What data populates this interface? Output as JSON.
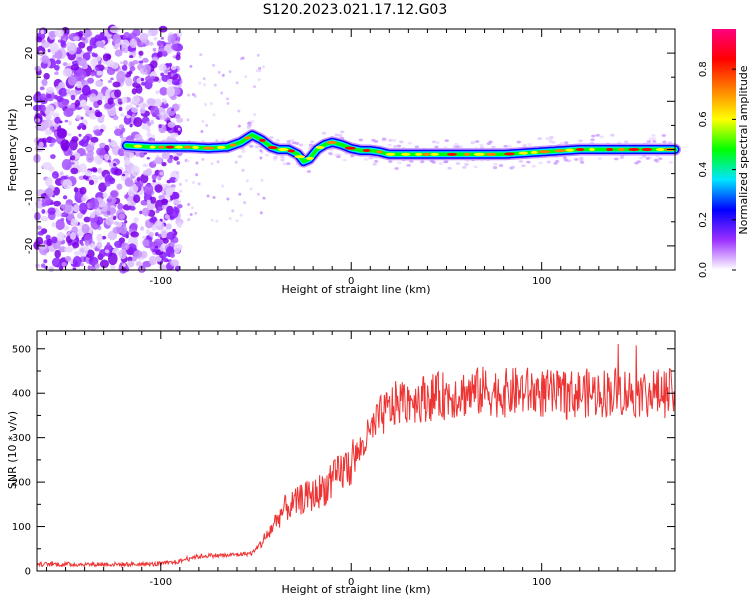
{
  "figure": {
    "title": "S120.2023.021.17.12.G03"
  },
  "chart_data": [
    {
      "type": "heatmap",
      "name": "spectrogram",
      "xlabel": "Height of straight line (km)",
      "ylabel": "Frequency (Hz)",
      "xlim": [
        -165,
        170
      ],
      "ylim": [
        -25,
        25
      ],
      "x_ticks": [
        -100,
        0,
        100
      ],
      "y_ticks": [
        -20,
        -10,
        0,
        10,
        20
      ],
      "track": {
        "x": [
          -118,
          -105,
          -95,
          -85,
          -75,
          -65,
          -58,
          -52,
          -47,
          -42,
          -38,
          -33,
          -28,
          -25,
          -22,
          -18,
          -14,
          -10,
          -5,
          0,
          5,
          10,
          15,
          20,
          30,
          40,
          50,
          60,
          80,
          100,
          120,
          140,
          160,
          170
        ],
        "y": [
          0.8,
          0.5,
          0.5,
          0.5,
          0.3,
          0.5,
          1.5,
          3.0,
          2.0,
          0.5,
          0.0,
          0.0,
          -1.0,
          -2.5,
          -2.0,
          0.0,
          1.0,
          1.5,
          1.0,
          0.2,
          -0.2,
          -0.2,
          -0.5,
          -1.0,
          -1.0,
          -1.0,
          -1.0,
          -1.0,
          -1.0,
          -0.5,
          0.0,
          0.0,
          0.0,
          0.0
        ]
      },
      "colorbar": {
        "label": "Normalized spectral amplitude",
        "range": [
          0,
          0.96
        ],
        "ticks": [
          0.0,
          0.2,
          0.4,
          0.6,
          0.8
        ],
        "colors": [
          "#ffffff",
          "#9b30ff",
          "#0000ff",
          "#00e6ff",
          "#00ff00",
          "#ffff00",
          "#ff8000",
          "#ff0000",
          "#ff0080"
        ]
      }
    },
    {
      "type": "line",
      "name": "snr",
      "xlabel": "Height of straight line (km)",
      "ylabel": "SNR (10 * v/v)",
      "xlim": [
        -165,
        170
      ],
      "ylim": [
        0,
        540
      ],
      "x_ticks": [
        -100,
        0,
        100
      ],
      "y_ticks": [
        0,
        100,
        200,
        300,
        400,
        500
      ],
      "color": "#ee3333",
      "series": [
        {
          "x": [
            -165,
            -150,
            -130,
            -115,
            -105,
            -95,
            -90,
            -85,
            -75,
            -65,
            -58,
            -52,
            -48,
            -44,
            -40,
            -35,
            -30,
            -25,
            -20,
            -15,
            -10,
            -5,
            0,
            5,
            10,
            15,
            20,
            25,
            30,
            40,
            50,
            60,
            70,
            80,
            90,
            100,
            110,
            120,
            130,
            140,
            150,
            160,
            170
          ],
          "values": [
            15,
            15,
            15,
            15,
            15,
            18,
            22,
            30,
            35,
            35,
            38,
            40,
            60,
            80,
            110,
            140,
            150,
            165,
            170,
            185,
            200,
            225,
            240,
            275,
            310,
            345,
            365,
            380,
            385,
            390,
            395,
            400,
            405,
            400,
            405,
            400,
            395,
            400,
            400,
            405,
            400,
            400,
            400
          ]
        }
      ]
    }
  ]
}
